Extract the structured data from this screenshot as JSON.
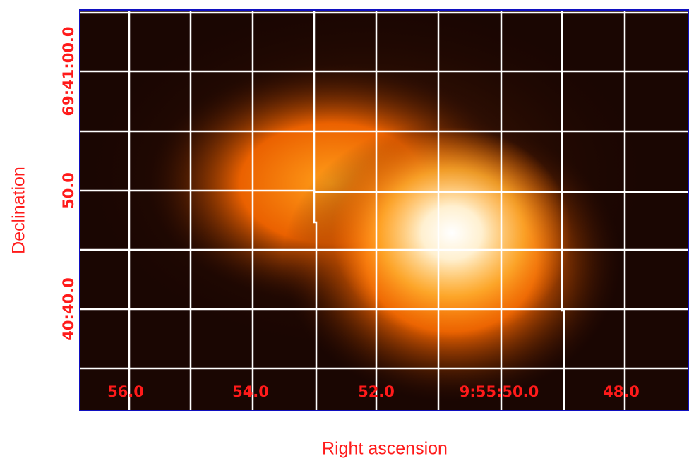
{
  "axes": {
    "x_title": "Right ascension",
    "y_title": "Declination",
    "x_labels": [
      "56.0",
      "54.0",
      "52.0",
      "9:55:50.0",
      "48.0"
    ],
    "y_labels": [
      "69:41:00.0",
      "50.0",
      "40:40.0"
    ]
  }
}
